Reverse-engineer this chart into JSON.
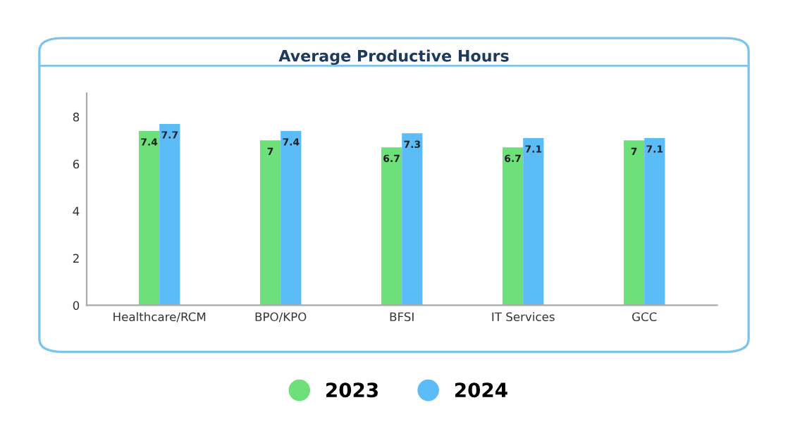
{
  "chart_data": {
    "type": "bar",
    "title": "Average Productive Hours",
    "categories": [
      "Healthcare/RCM",
      "BPO/KPO",
      "BFSI",
      "IT Services",
      "GCC"
    ],
    "series": [
      {
        "name": "2023",
        "color": "#6ee07a",
        "values": [
          7.4,
          7,
          6.7,
          6.7,
          7
        ]
      },
      {
        "name": "2024",
        "color": "#5bbcf7",
        "values": [
          7.7,
          7.4,
          7.3,
          7.1,
          7.1
        ]
      }
    ],
    "ylim": [
      0,
      9
    ],
    "yticks": [
      0,
      2,
      4,
      6,
      8
    ],
    "grid": false,
    "legend": "bottom",
    "data_labels": true
  }
}
